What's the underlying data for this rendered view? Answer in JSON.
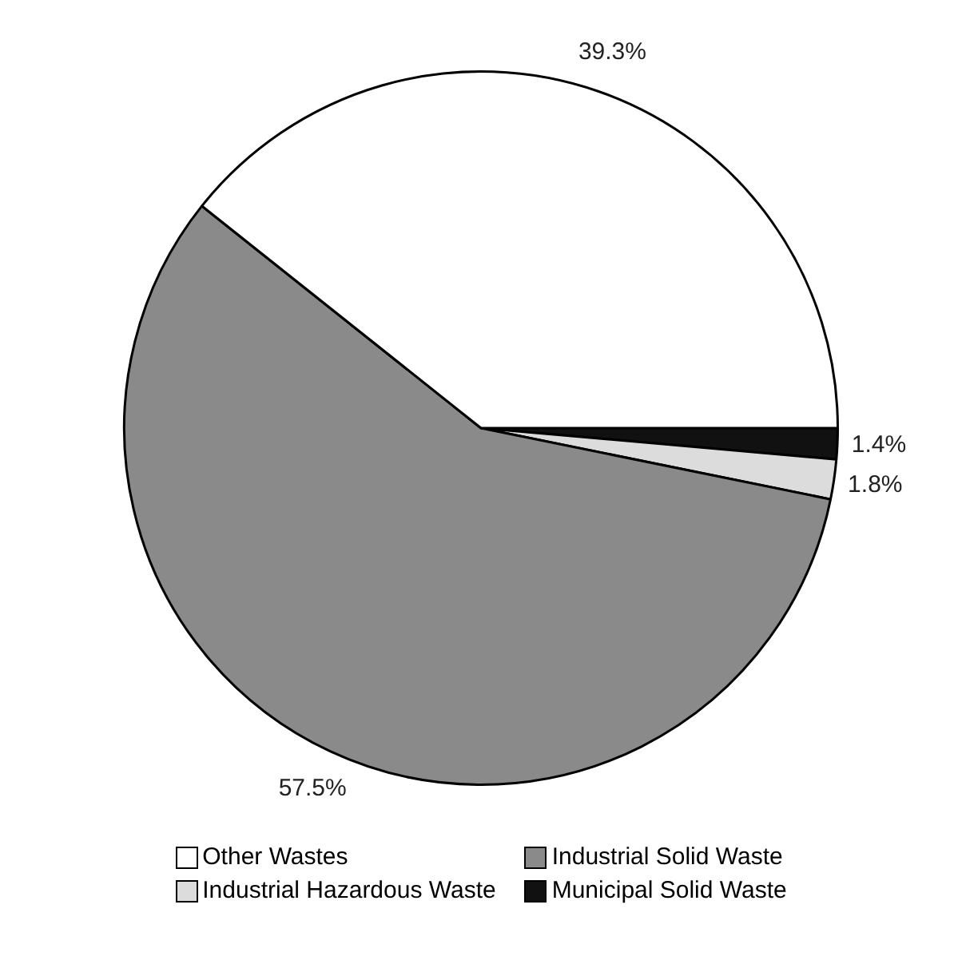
{
  "chart_data": {
    "type": "pie",
    "categories": [
      "Other Wastes",
      "Industrial Solid Waste",
      "Industrial Hazardous Waste",
      "Municipal Solid Waste"
    ],
    "values": [
      39.3,
      57.5,
      1.8,
      1.4
    ],
    "colors": [
      "#ffffff",
      "#8a8a8a",
      "#dcdcdc",
      "#111111"
    ],
    "value_labels": [
      "39.3%",
      "57.5%",
      "1.8%",
      "1.4%"
    ],
    "legend": "bottom"
  }
}
